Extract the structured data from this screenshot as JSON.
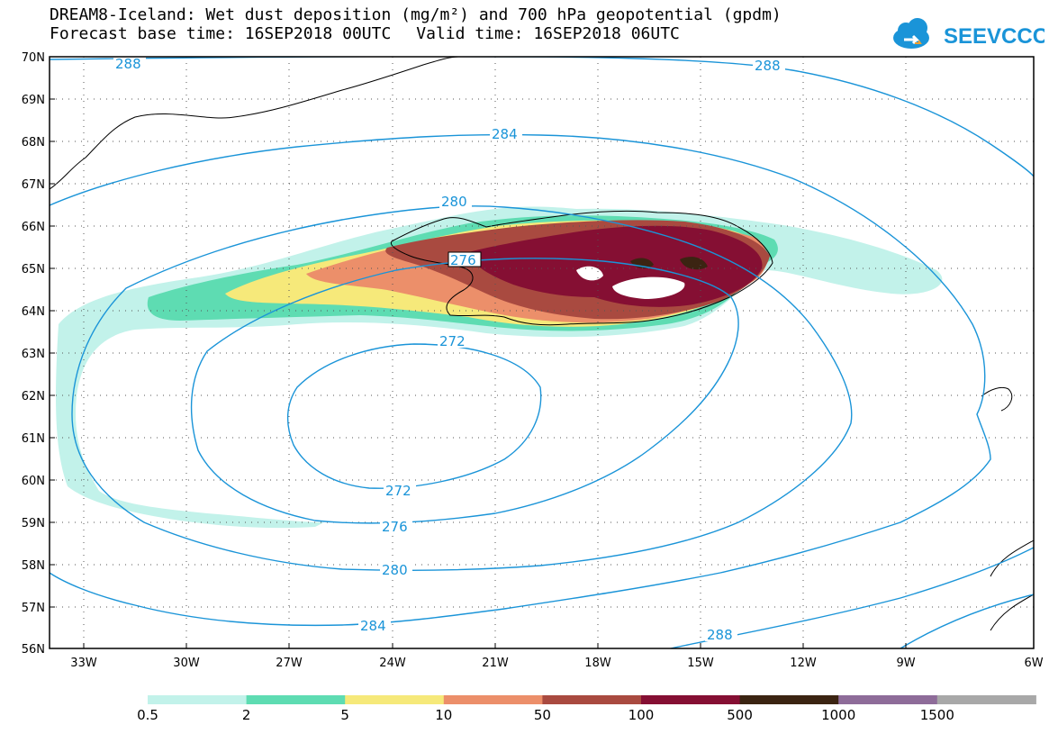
{
  "header": {
    "title": "DREAM8-Iceland: Wet dust deposition (mg/m²) and 700 hPa geopotential (gpdm)",
    "base_time": "Forecast base time: 16SEP2018 00UTC",
    "valid_time": "Valid time: 16SEP2018 06UTC"
  },
  "logo": {
    "text": "SEEVCCC",
    "color": "#1a94d8"
  },
  "axes": {
    "lat_labels": [
      "70N",
      "69N",
      "68N",
      "67N",
      "66N",
      "65N",
      "64N",
      "63N",
      "62N",
      "61N",
      "60N",
      "59N",
      "58N",
      "57N",
      "56N"
    ],
    "lon_labels": [
      "33W",
      "30W",
      "27W",
      "24W",
      "21W",
      "18W",
      "15W",
      "12W",
      "9W",
      "6W"
    ]
  },
  "contours": {
    "color": "#1a94d8",
    "labels": [
      "288",
      "288",
      "284",
      "280",
      "276",
      "272",
      "272",
      "276",
      "280",
      "284",
      "288"
    ]
  },
  "colorbar": {
    "labels": [
      "0.5",
      "2",
      "5",
      "10",
      "50",
      "100",
      "500",
      "1000",
      "1500"
    ],
    "colors": [
      "#c2f2ea",
      "#5edcb2",
      "#f6e97a",
      "#ec8f6a",
      "#a94a40",
      "#850f33",
      "#3b2412",
      "#8e6c99",
      "#a8a8a8"
    ]
  }
}
